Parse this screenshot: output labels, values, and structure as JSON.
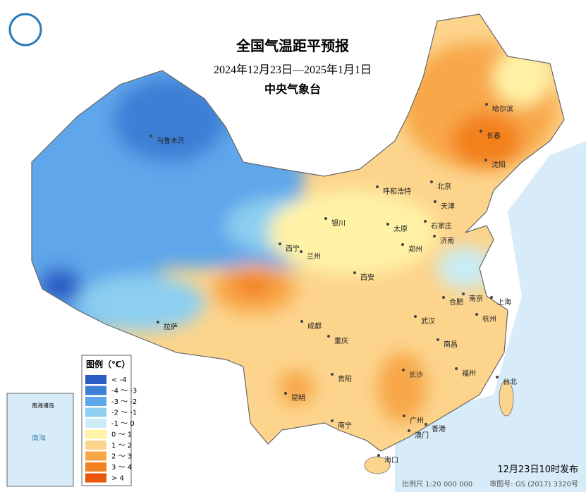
{
  "header": {
    "title": "全国气温距平预报",
    "subtitle": "2024年12月23日—2025年1月1日",
    "issuer": "中央气象台"
  },
  "legend": {
    "title": "图例（℃）",
    "items": [
      {
        "label": "< -4",
        "color": "#2b5cc4"
      },
      {
        "label": "-4 ～ -3",
        "color": "#3d7fd6"
      },
      {
        "label": "-3 ～ -2",
        "color": "#5ea6ea"
      },
      {
        "label": "-2 ～ -1",
        "color": "#8ccff0"
      },
      {
        "label": "-1 ～ 0",
        "color": "#c9ecf5"
      },
      {
        "label": "0 ～ 1",
        "color": "#fff3a6"
      },
      {
        "label": "1 ～ 2",
        "color": "#fcd48c"
      },
      {
        "label": "2 ～ 3",
        "color": "#f8a748"
      },
      {
        "label": "3 ～ 4",
        "color": "#f2811f"
      },
      {
        "label": "> 4",
        "color": "#e8560e"
      }
    ]
  },
  "cities": [
    "乌鲁木齐",
    "哈尔滨",
    "长春",
    "沈阳",
    "北京",
    "天津",
    "呼和浩特",
    "石家庄",
    "太原",
    "济南",
    "银川",
    "西宁",
    "兰州",
    "西安",
    "郑州",
    "合肥",
    "南京",
    "上海",
    "杭州",
    "武汉",
    "成都",
    "重庆",
    "拉萨",
    "贵阳",
    "长沙",
    "南昌",
    "福州",
    "台北",
    "昆明",
    "南宁",
    "广州",
    "香港",
    "澳门",
    "海口"
  ],
  "inset": {
    "title": "南海诸岛",
    "sea": "南海"
  },
  "footer": {
    "release": "12月23日10时发布",
    "scale": "比例尺 1:20 000 000",
    "map_number": "审图号: GS (2017) 3320号"
  }
}
